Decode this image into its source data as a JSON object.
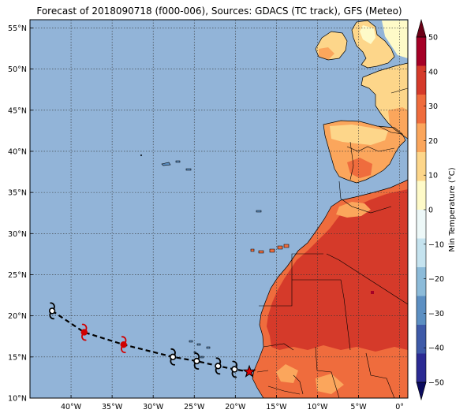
{
  "title": "Forecast of 2018090718 (f000-006), Sources: GDACS (TC track), GFS (Meteo)",
  "map": {
    "lon_range": [
      -45,
      1
    ],
    "lat_range": [
      10,
      56
    ],
    "lat_ticks": [
      {
        "value": 55,
        "label": "55°N"
      },
      {
        "value": 50,
        "label": "50°N"
      },
      {
        "value": 45,
        "label": "45°N"
      },
      {
        "value": 40,
        "label": "40°N"
      },
      {
        "value": 35,
        "label": "35°N"
      },
      {
        "value": 30,
        "label": "30°N"
      },
      {
        "value": 25,
        "label": "25°N"
      },
      {
        "value": 20,
        "label": "20°N"
      },
      {
        "value": 15,
        "label": "15°N"
      },
      {
        "value": 10,
        "label": "10°N"
      }
    ],
    "lon_ticks": [
      {
        "value": -40,
        "label": "40°W"
      },
      {
        "value": -35,
        "label": "35°W"
      },
      {
        "value": -30,
        "label": "30°W"
      },
      {
        "value": -25,
        "label": "25°W"
      },
      {
        "value": -20,
        "label": "20°W"
      },
      {
        "value": -15,
        "label": "15°W"
      },
      {
        "value": -10,
        "label": "10°W"
      },
      {
        "value": -5,
        "label": "5°W"
      },
      {
        "value": 0,
        "label": "0°"
      }
    ],
    "ocean_color": "#92b4d8",
    "grid": true
  },
  "track": {
    "points": [
      {
        "lon": -42.3,
        "lat": 20.6,
        "color": "#000000"
      },
      {
        "lon": -38.4,
        "lat": 18.0,
        "color": "#d00000"
      },
      {
        "lon": -33.6,
        "lat": 16.5,
        "color": "#d00000"
      },
      {
        "lon": -27.6,
        "lat": 15.0,
        "color": "#000000"
      },
      {
        "lon": -24.7,
        "lat": 14.5,
        "color": "#000000"
      },
      {
        "lon": -22.1,
        "lat": 13.9,
        "color": "#000000"
      },
      {
        "lon": -20.1,
        "lat": 13.5,
        "color": "#000000"
      }
    ],
    "current": {
      "lon": -18.3,
      "lat": 13.2,
      "color": "#e00000"
    }
  },
  "colorbar": {
    "label": "Min Temperature (°C)",
    "ticks": [
      {
        "value": 50,
        "label": "50"
      },
      {
        "value": 40,
        "label": "40"
      },
      {
        "value": 30,
        "label": "30"
      },
      {
        "value": 20,
        "label": "20"
      },
      {
        "value": 10,
        "label": "10"
      },
      {
        "value": 0,
        "label": "0"
      },
      {
        "value": -10,
        "label": "−10"
      },
      {
        "value": -20,
        "label": "−20"
      },
      {
        "value": -30,
        "label": "−30"
      },
      {
        "value": -40,
        "label": "−40"
      },
      {
        "value": -50,
        "label": "−50"
      }
    ],
    "colors": [
      "#2b2a93",
      "#3e5aa8",
      "#5c8fc2",
      "#8cbbd9",
      "#c5e3ef",
      "#edf8f8",
      "#fefac8",
      "#fdd68a",
      "#fba65c",
      "#ef6c3d",
      "#d53a2a",
      "#a50026"
    ],
    "under_color": "#0b0b5e",
    "over_color": "#6b0016"
  }
}
